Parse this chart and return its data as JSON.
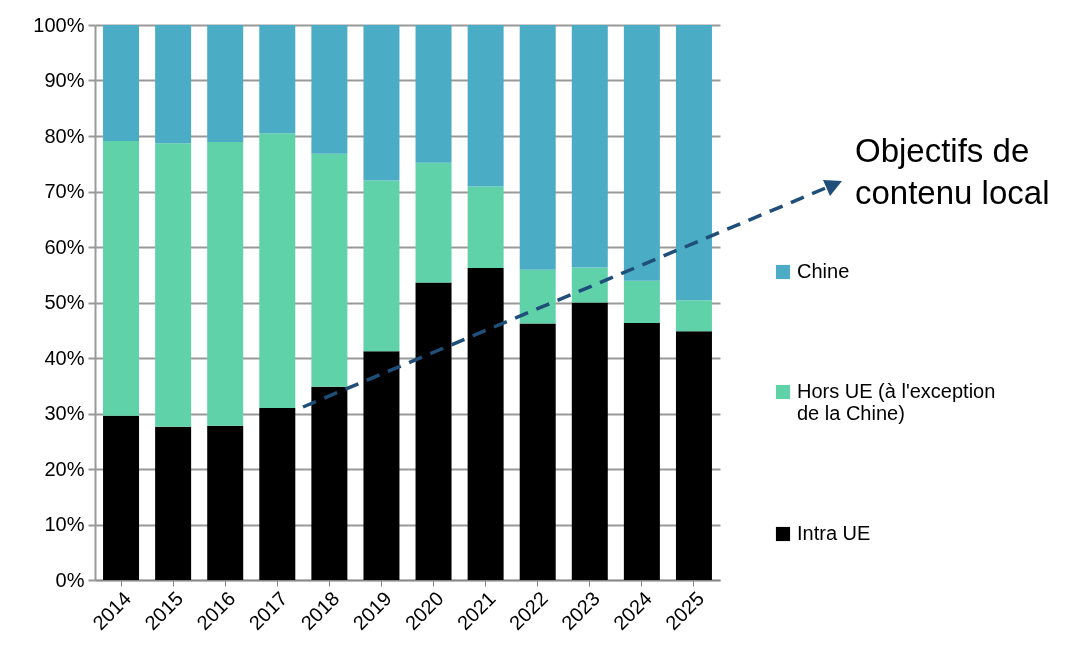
{
  "chart_data": {
    "type": "bar",
    "stacked": true,
    "categories": [
      "2014",
      "2015",
      "2016",
      "2017",
      "2018",
      "2019",
      "2020",
      "2021",
      "2022",
      "2023",
      "2024",
      "2025"
    ],
    "series": [
      {
        "name": "Intra UE",
        "color": "#000000",
        "values": [
          29.6,
          27.6,
          27.8,
          31.0,
          34.8,
          41.2,
          53.6,
          56.2,
          46.2,
          50.0,
          46.3,
          44.8
        ]
      },
      {
        "name": "Hors UE (à l'exception de la Chine)",
        "color": "#60d2aa",
        "values": [
          49.5,
          51.1,
          51.1,
          49.5,
          42.0,
          30.8,
          21.6,
          14.7,
          9.7,
          6.3,
          7.6,
          5.6
        ]
      },
      {
        "name": "Chine",
        "color": "#4bacc6",
        "values": [
          20.9,
          21.3,
          21.1,
          19.5,
          23.2,
          28.0,
          24.8,
          29.1,
          44.1,
          43.7,
          46.1,
          49.6
        ]
      }
    ],
    "ylim": [
      0,
      100
    ],
    "yticks": [
      {
        "value": 0,
        "label": "0%"
      },
      {
        "value": 10,
        "label": "10%"
      },
      {
        "value": 20,
        "label": "20%"
      },
      {
        "value": 30,
        "label": "30%"
      },
      {
        "value": 40,
        "label": "40%"
      },
      {
        "value": 50,
        "label": "50%"
      },
      {
        "value": 60,
        "label": "60%"
      },
      {
        "value": 70,
        "label": "70%"
      },
      {
        "value": 80,
        "label": "80%"
      },
      {
        "value": 90,
        "label": "90%"
      },
      {
        "value": 100,
        "label": "100%"
      }
    ],
    "grid": "y",
    "legend": "right",
    "annotations": [
      "Objectifs de contenu local"
    ]
  }
}
